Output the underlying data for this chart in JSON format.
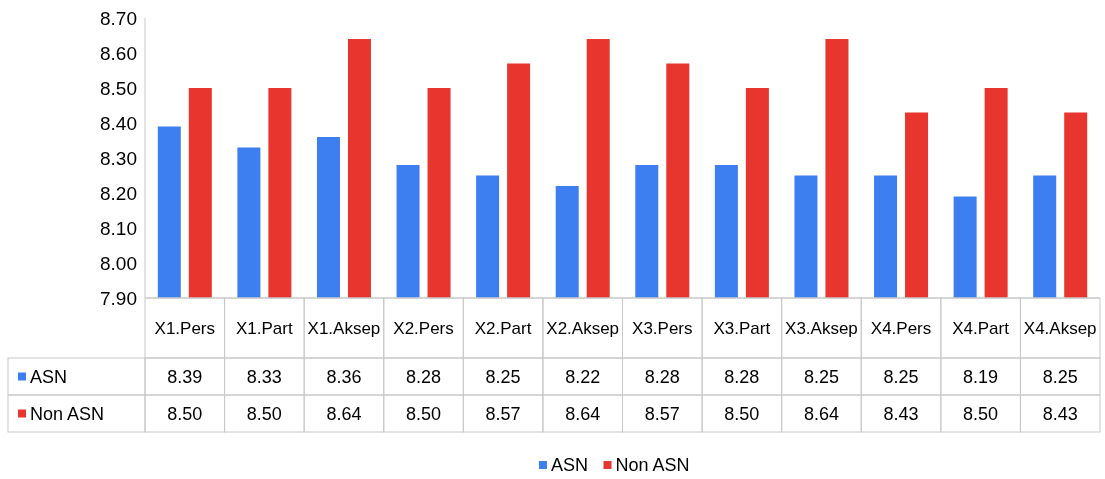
{
  "chart_data": {
    "type": "bar",
    "categories": [
      "X1.Pers",
      "X1.Part",
      "X1.Aksep",
      "X2.Pers",
      "X2.Part",
      "X2.Aksep",
      "X3.Pers",
      "X3.Part",
      "X3.Aksep",
      "X4.Pers",
      "X4.Part",
      "X4.Aksep"
    ],
    "series": [
      {
        "name": "ASN",
        "color": "#3d7ff0",
        "values": [
          8.39,
          8.33,
          8.36,
          8.28,
          8.25,
          8.22,
          8.28,
          8.28,
          8.25,
          8.25,
          8.19,
          8.25
        ],
        "value_labels": [
          "8.39",
          "8.33",
          "8.36",
          "8.28",
          "8.25",
          "8.22",
          "8.28",
          "8.28",
          "8.25",
          "8.25",
          "8.19",
          "8.25"
        ]
      },
      {
        "name": "Non ASN",
        "color": "#e8352d",
        "values": [
          8.5,
          8.5,
          8.64,
          8.5,
          8.57,
          8.64,
          8.57,
          8.5,
          8.64,
          8.43,
          8.5,
          8.43
        ],
        "value_labels": [
          "8.50",
          "8.50",
          "8.64",
          "8.50",
          "8.57",
          "8.64",
          "8.57",
          "8.50",
          "8.64",
          "8.43",
          "8.50",
          "8.43"
        ]
      }
    ],
    "ylim": [
      7.9,
      8.7
    ],
    "yticks": [
      {
        "value": 7.9,
        "label": "7.90"
      },
      {
        "value": 8.0,
        "label": "8.00"
      },
      {
        "value": 8.1,
        "label": "8.10"
      },
      {
        "value": 8.2,
        "label": "8.20"
      },
      {
        "value": 8.3,
        "label": "8.30"
      },
      {
        "value": 8.4,
        "label": "8.40"
      },
      {
        "value": 8.5,
        "label": "8.50"
      },
      {
        "value": 8.6,
        "label": "8.60"
      },
      {
        "value": 8.7,
        "label": "8.70"
      }
    ],
    "grid": false,
    "legend": "bottom"
  }
}
